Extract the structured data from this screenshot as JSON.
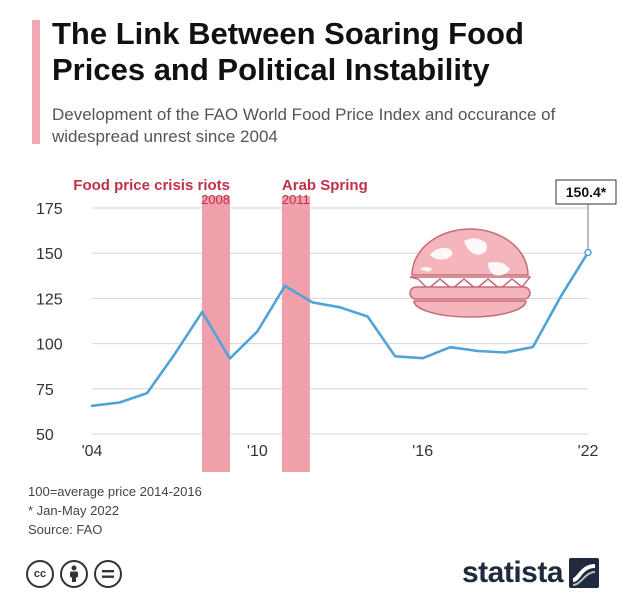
{
  "header": {
    "title": "The Link Between Soaring Food Prices and Political Instability",
    "subtitle": "Development of the FAO World Food Price Index and occurance of widespread unrest since 2004"
  },
  "footnotes": [
    "100=average price 2014-2016",
    "* Jan-May 2022",
    "Source: FAO"
  ],
  "licenses": [
    "cc",
    "by",
    "nd"
  ],
  "brand": {
    "name": "statista"
  },
  "colors": {
    "line": "#4fa3d8",
    "band": "#f0a0ab",
    "accent": "#f2a8b3",
    "band_label": "#c0304a",
    "grid": "#d6d6d6"
  },
  "chart_data": {
    "type": "line",
    "x": [
      2004,
      2005,
      2006,
      2007,
      2008,
      2009,
      2010,
      2011,
      2012,
      2013,
      2014,
      2015,
      2016,
      2017,
      2018,
      2019,
      2020,
      2021,
      2022
    ],
    "series": [
      {
        "values": [
          65.6,
          67.4,
          72.6,
          94.2,
          117.5,
          91.7,
          106.7,
          131.9,
          122.8,
          120.1,
          115.0,
          93.0,
          91.9,
          98.0,
          95.9,
          95.1,
          98.1,
          125.7,
          150.4
        ]
      }
    ],
    "xlim": [
      2004,
      2022
    ],
    "ylim": [
      50,
      175
    ],
    "yticks": [
      50,
      75,
      100,
      125,
      150,
      175
    ],
    "xticks": [
      {
        "value": 2004,
        "label": "'04"
      },
      {
        "value": 2010,
        "label": "'10"
      },
      {
        "value": 2016,
        "label": "'16"
      },
      {
        "value": 2022,
        "label": "'22"
      }
    ],
    "grid": true,
    "bands": [
      {
        "center": 2008.5,
        "label": "Food price crisis riots",
        "year": "2008"
      },
      {
        "center": 2011.4,
        "label": "Arab Spring",
        "year": "2011"
      }
    ],
    "callout": {
      "x": 2022,
      "y": 150.4,
      "label": "150.4*"
    },
    "illustration": "globe-burger-icon"
  }
}
